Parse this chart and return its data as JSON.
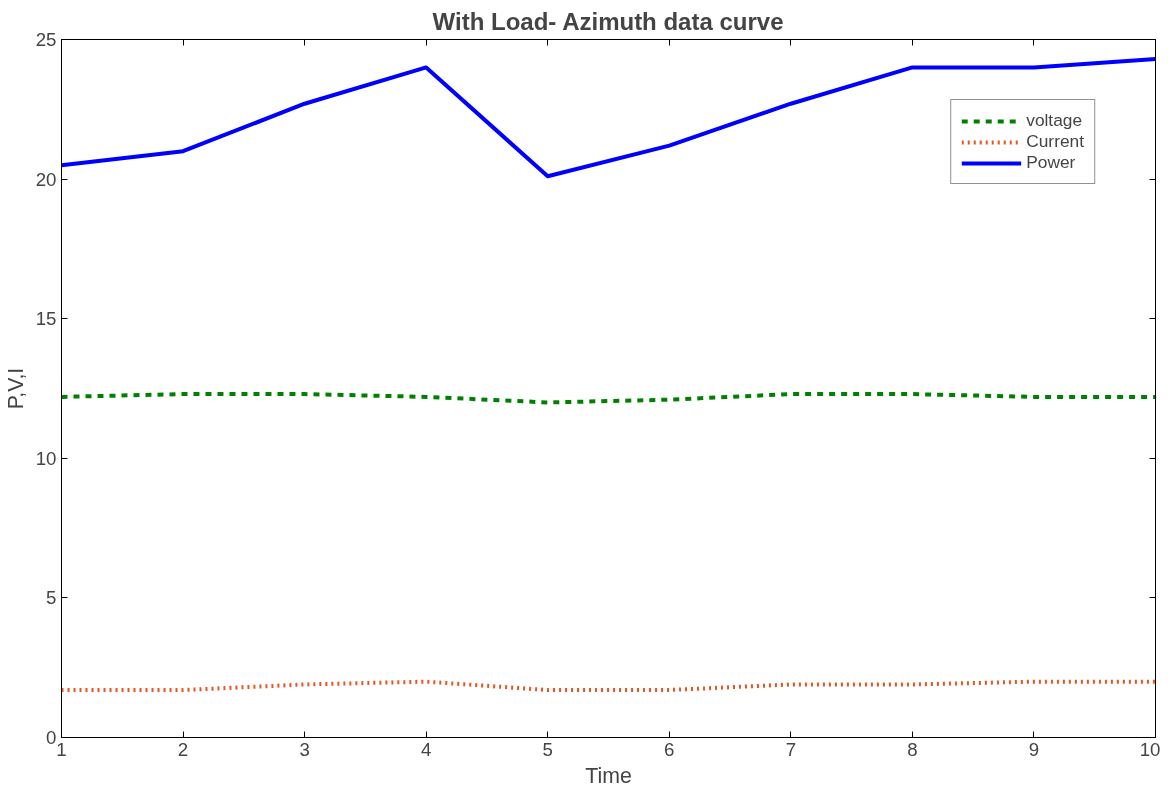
{
  "chart_data": {
    "type": "line",
    "title": "With Load- Azimuth data curve",
    "xlabel": "Time",
    "ylabel": "P,V,I",
    "x": [
      1,
      2,
      3,
      4,
      5,
      6,
      7,
      8,
      9,
      10
    ],
    "series": [
      {
        "name": "voltage",
        "color": "#008000",
        "line_style": "dashed",
        "values": [
          12.2,
          12.3,
          12.3,
          12.2,
          12.0,
          12.1,
          12.3,
          12.3,
          12.2,
          12.2
        ]
      },
      {
        "name": "Current",
        "color": "#e8531f",
        "line_style": "dotted",
        "values": [
          1.7,
          1.7,
          1.9,
          2.0,
          1.7,
          1.7,
          1.9,
          1.9,
          2.0,
          2.0
        ]
      },
      {
        "name": "Power",
        "color": "#0000ff",
        "line_style": "solid",
        "values": [
          20.5,
          21.0,
          22.7,
          24.0,
          20.1,
          21.2,
          22.7,
          24.0,
          24.0,
          24.3
        ]
      }
    ],
    "xlim": [
      1,
      10
    ],
    "ylim": [
      0,
      25
    ],
    "xticks": [
      1,
      2,
      3,
      4,
      5,
      6,
      7,
      8,
      9,
      10
    ],
    "yticks": [
      0,
      5,
      10,
      15,
      20,
      25
    ],
    "grid": false,
    "legend": "top right"
  }
}
